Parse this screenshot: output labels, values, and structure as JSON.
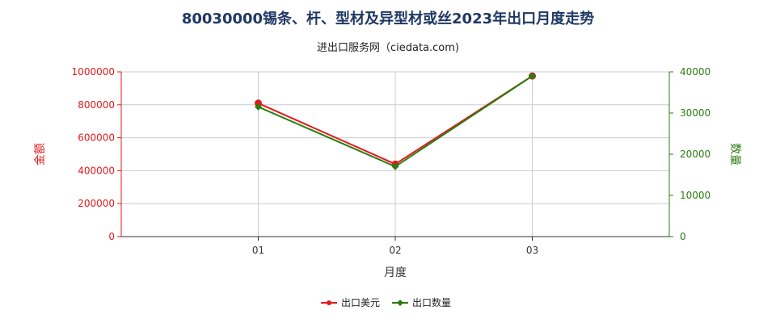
{
  "title": "80030000锡条、杆、型材及异型材或丝2023年出口月度走势",
  "subtitle": "进出口服务网（ciedata.com)",
  "colors": {
    "left_series": "#e31a1c",
    "right_series": "#2a7d10",
    "grid": "#cccccc",
    "axis": "#333333"
  },
  "chart_data": {
    "type": "line",
    "categories": [
      "01",
      "02",
      "03"
    ],
    "xlabel": "月度",
    "grid": true,
    "legend_position": "bottom",
    "y_left": {
      "label": "金额",
      "ylim": [
        0,
        1000000
      ],
      "ticks": [
        "0",
        "200000",
        "400000",
        "600000",
        "800000",
        "1000000"
      ],
      "tick_values": [
        0,
        200000,
        400000,
        600000,
        800000,
        1000000
      ]
    },
    "y_right": {
      "label": "数量",
      "ylim": [
        0,
        40000
      ],
      "ticks": [
        "0",
        "10000",
        "20000",
        "30000",
        "40000"
      ],
      "tick_values": [
        0,
        10000,
        20000,
        30000,
        40000
      ]
    },
    "series": [
      {
        "name": "出口美元",
        "axis": "left",
        "values": [
          810000,
          440000,
          975000
        ]
      },
      {
        "name": "出口数量",
        "axis": "right",
        "values": [
          31500,
          17000,
          39000
        ]
      }
    ]
  }
}
